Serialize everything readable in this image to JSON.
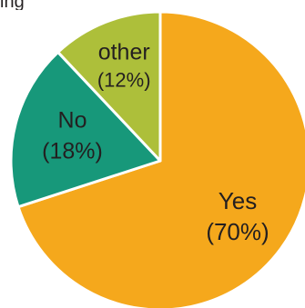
{
  "title_fragment": "ing",
  "chart_data": {
    "type": "pie",
    "slices": [
      {
        "label": "Yes",
        "percent_label": "(70%)",
        "value": 70,
        "color": "#f5a81c"
      },
      {
        "label": "No",
        "percent_label": "(18%)",
        "value": 18,
        "color": "#17987a"
      },
      {
        "label": "other",
        "percent_label": "(12%)",
        "value": 12,
        "color": "#adbf3a"
      }
    ],
    "start": "12 o'clock",
    "direction": "clockwise",
    "slice_border_color": "#ffffff",
    "label_color": "#231f20"
  }
}
